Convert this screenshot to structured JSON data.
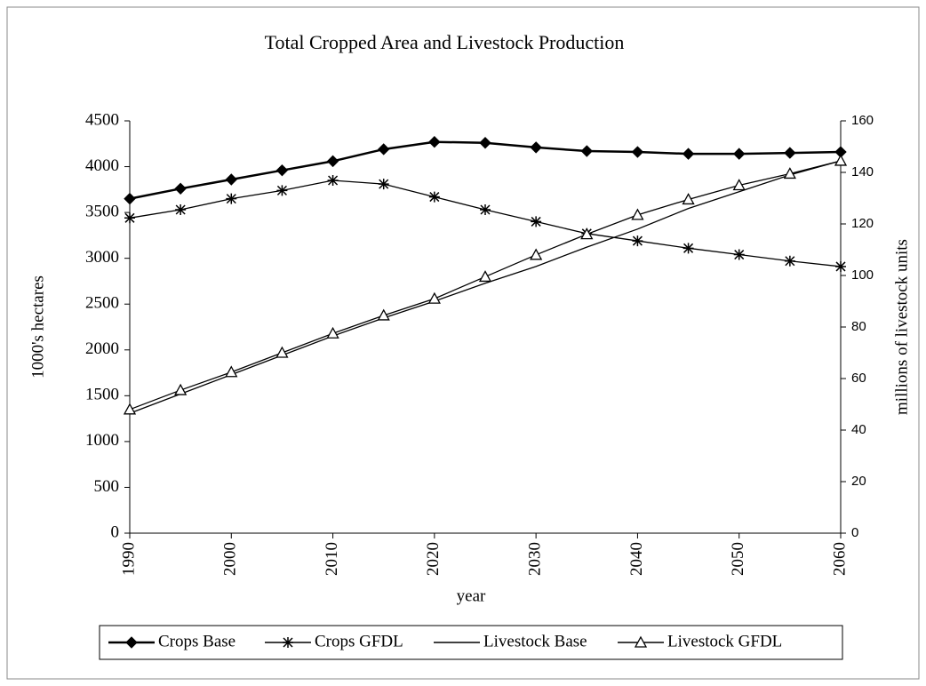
{
  "chart_data": {
    "type": "line",
    "title": "Total Cropped Area and Livestock Production",
    "x_label": "year",
    "y_label": "1000's hectares",
    "y2_label": "millions of livestock units",
    "x": [
      1990,
      1995,
      2000,
      2005,
      2010,
      2015,
      2020,
      2025,
      2030,
      2035,
      2040,
      2045,
      2050,
      2055,
      2060
    ],
    "xlim": [
      1990,
      2060
    ],
    "xticks": [
      1990,
      2000,
      2010,
      2020,
      2030,
      2040,
      2050,
      2060
    ],
    "ylim": [
      0,
      4500
    ],
    "yticks": [
      0,
      500,
      1000,
      1500,
      2000,
      2500,
      3000,
      3500,
      4000,
      4500
    ],
    "y2lim": [
      0,
      160
    ],
    "y2ticks": [
      0,
      20,
      40,
      60,
      80,
      100,
      120,
      140,
      160
    ],
    "grid": false,
    "legend": "bottom",
    "series": [
      {
        "name": "Crops Base",
        "color": "#000000",
        "marker": "diamond",
        "values": [
          3650,
          3760,
          3860,
          3960,
          4060,
          4190,
          4270,
          4260,
          4210,
          4170,
          4160,
          4140,
          4140,
          4150,
          4160
        ]
      },
      {
        "name": "Crops GFDL",
        "color": "#000000",
        "marker": "star",
        "values": [
          3440,
          3530,
          3650,
          3740,
          3850,
          3810,
          3670,
          3530,
          3400,
          3270,
          3190,
          3110,
          3040,
          2970,
          2910
        ]
      },
      {
        "name": "Livestock Base",
        "color": "#000000",
        "marker": "none",
        "axis": "y2",
        "values": [
          46.5,
          54,
          61.5,
          69,
          76.5,
          83.5,
          90,
          97,
          103.5,
          111,
          118,
          126,
          132.5,
          139,
          144.5
        ]
      },
      {
        "name": "Livestock GFDL",
        "color": "#000000",
        "marker": "triangle",
        "axis": "y2",
        "values": [
          48,
          55.5,
          62.5,
          70,
          77.5,
          84.5,
          91,
          99.5,
          108,
          116,
          123.5,
          129.5,
          135,
          139.5,
          144.5
        ]
      }
    ]
  }
}
